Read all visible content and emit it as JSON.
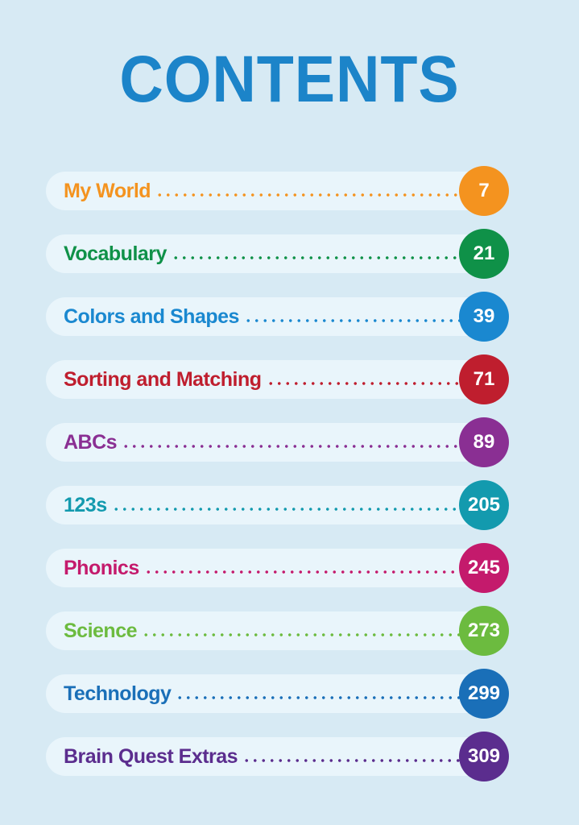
{
  "title": "CONTENTS",
  "entries": [
    {
      "label": "My World",
      "page": "7",
      "color": "#f4931f"
    },
    {
      "label": "Vocabulary",
      "page": "21",
      "color": "#0f9148"
    },
    {
      "label": "Colors and Shapes",
      "page": "39",
      "color": "#1a88d0"
    },
    {
      "label": "Sorting and Matching",
      "page": "71",
      "color": "#bf1e2e"
    },
    {
      "label": "ABCs",
      "page": "89",
      "color": "#8a2f93"
    },
    {
      "label": "123s",
      "page": "205",
      "color": "#139aae"
    },
    {
      "label": "Phonics",
      "page": "245",
      "color": "#c41a6c"
    },
    {
      "label": "Science",
      "page": "273",
      "color": "#6cbb3f"
    },
    {
      "label": "Technology",
      "page": "299",
      "color": "#1a6fb8"
    },
    {
      "label": "Brain Quest Extras",
      "page": "309",
      "color": "#5b2d8e"
    }
  ]
}
